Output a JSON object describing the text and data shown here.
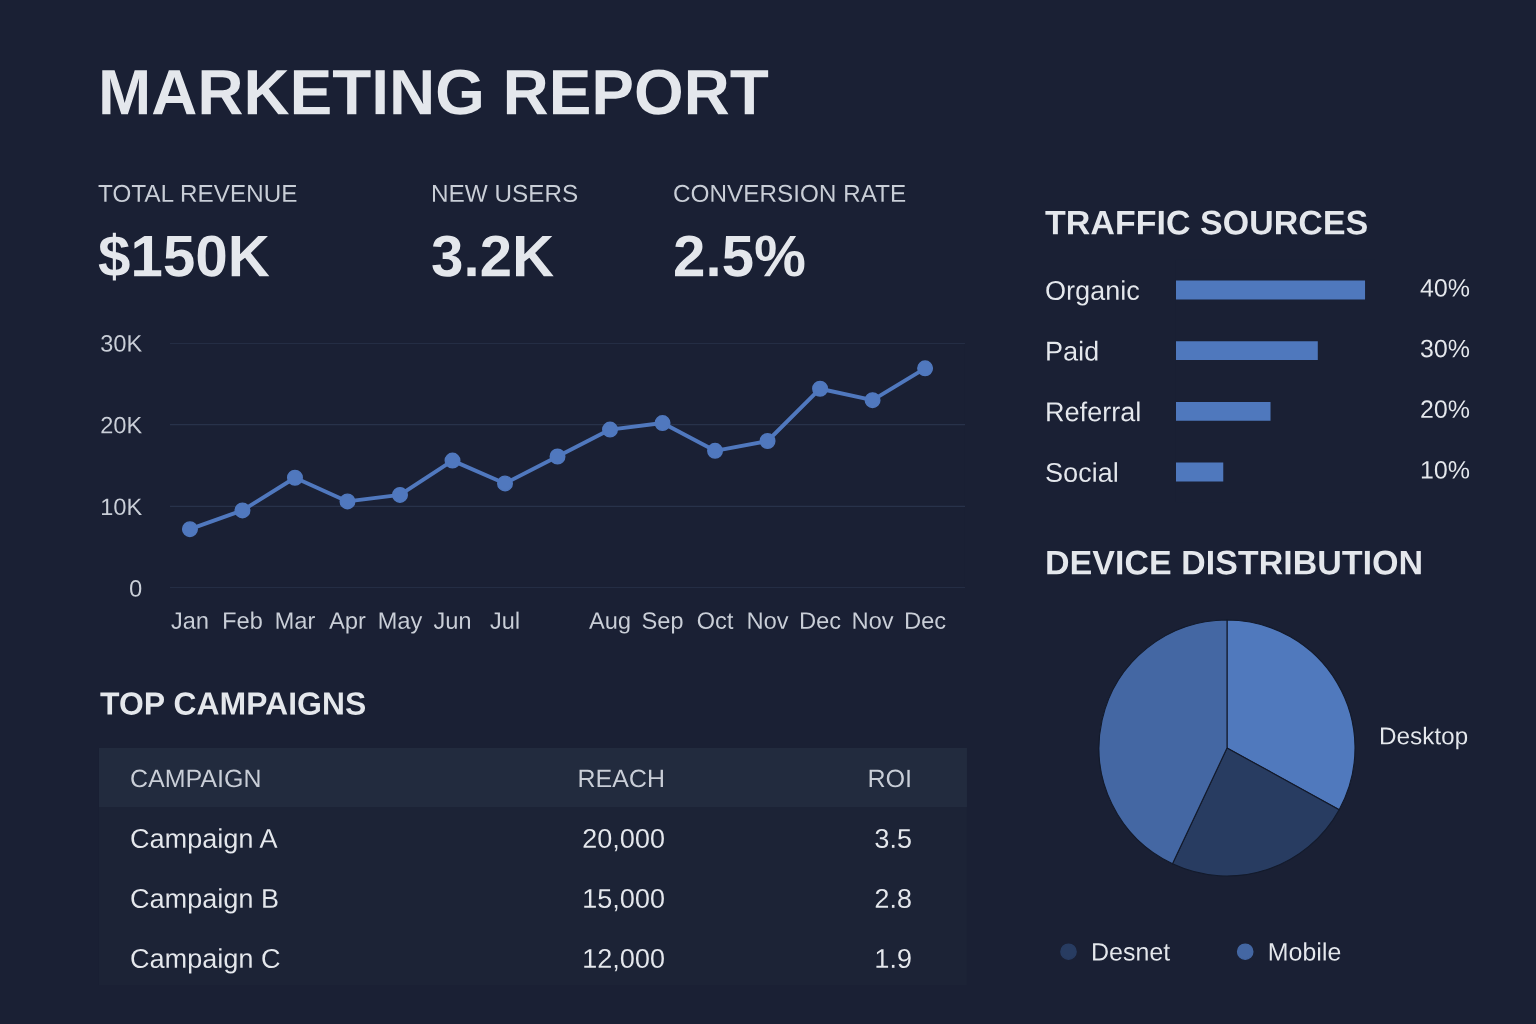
{
  "chart_data": [
    {
      "type": "other",
      "title": "MARKETING REPORT",
      "annotations": [
        "TOTAL REVENUE",
        "$150K",
        "NEW USERS",
        "3.2K",
        "CONVERSION RATE",
        "2.5%"
      ]
    },
    {
      "type": "bar",
      "orientation": "horizontal",
      "title": "TRAFFIC SOURCES",
      "categories": [
        "Organic",
        "Paid",
        "Referral",
        "Social"
      ],
      "values": [
        40,
        30,
        20,
        10
      ],
      "value_labels": [
        "40%",
        "30%",
        "20%",
        "10%"
      ],
      "color": "#4f78bd",
      "tick_labels": "y"
    },
    {
      "type": "line",
      "categories": [
        "Jan",
        "Feb",
        "Mar",
        "Apr",
        "May",
        "Jun",
        "Jul",
        null,
        "Aug",
        "Sep",
        "Oct",
        "Nov",
        "Dec",
        "Nov",
        "Dec"
      ],
      "values": [
        7200,
        9500,
        13500,
        10600,
        11400,
        15600,
        12800,
        16100,
        19400,
        20200,
        16800,
        18000,
        24400,
        23000,
        26900
      ],
      "color": "#5078be",
      "ylim": [
        0,
        30000
      ],
      "yticks": [
        0,
        {
          "value": 10000,
          "label": "10K"
        },
        {
          "value": 20000,
          "label": "20K"
        },
        {
          "value": 30000,
          "label": "30K"
        }
      ],
      "grid": "y",
      "marker": "circle",
      "line_style": "solid"
    },
    {
      "type": "pie",
      "title": "DEVICE DISTRIBUTION",
      "categories": [
        "Desktop",
        "Desnet",
        "Mobile"
      ],
      "values": [
        33,
        24,
        43
      ],
      "colors": [
        "#5079bd",
        "#283c61",
        "#4467a3"
      ],
      "legend": "bottom"
    },
    {
      "type": "other",
      "title": "TOP CAMPAIGNS",
      "xlabel": "CAMPAIGN",
      "categories": [
        "Campaign A",
        "Campaign B",
        "Campaign C"
      ],
      "series": [
        {
          "name": "REACH",
          "values": [
            20000,
            15000,
            12000
          ],
          "value_labels": [
            "20,000",
            "15,000",
            "12,000"
          ]
        },
        {
          "name": "ROI",
          "values": [
            3.5,
            2.8,
            1.9
          ]
        }
      ],
      "data_labels": true
    }
  ]
}
